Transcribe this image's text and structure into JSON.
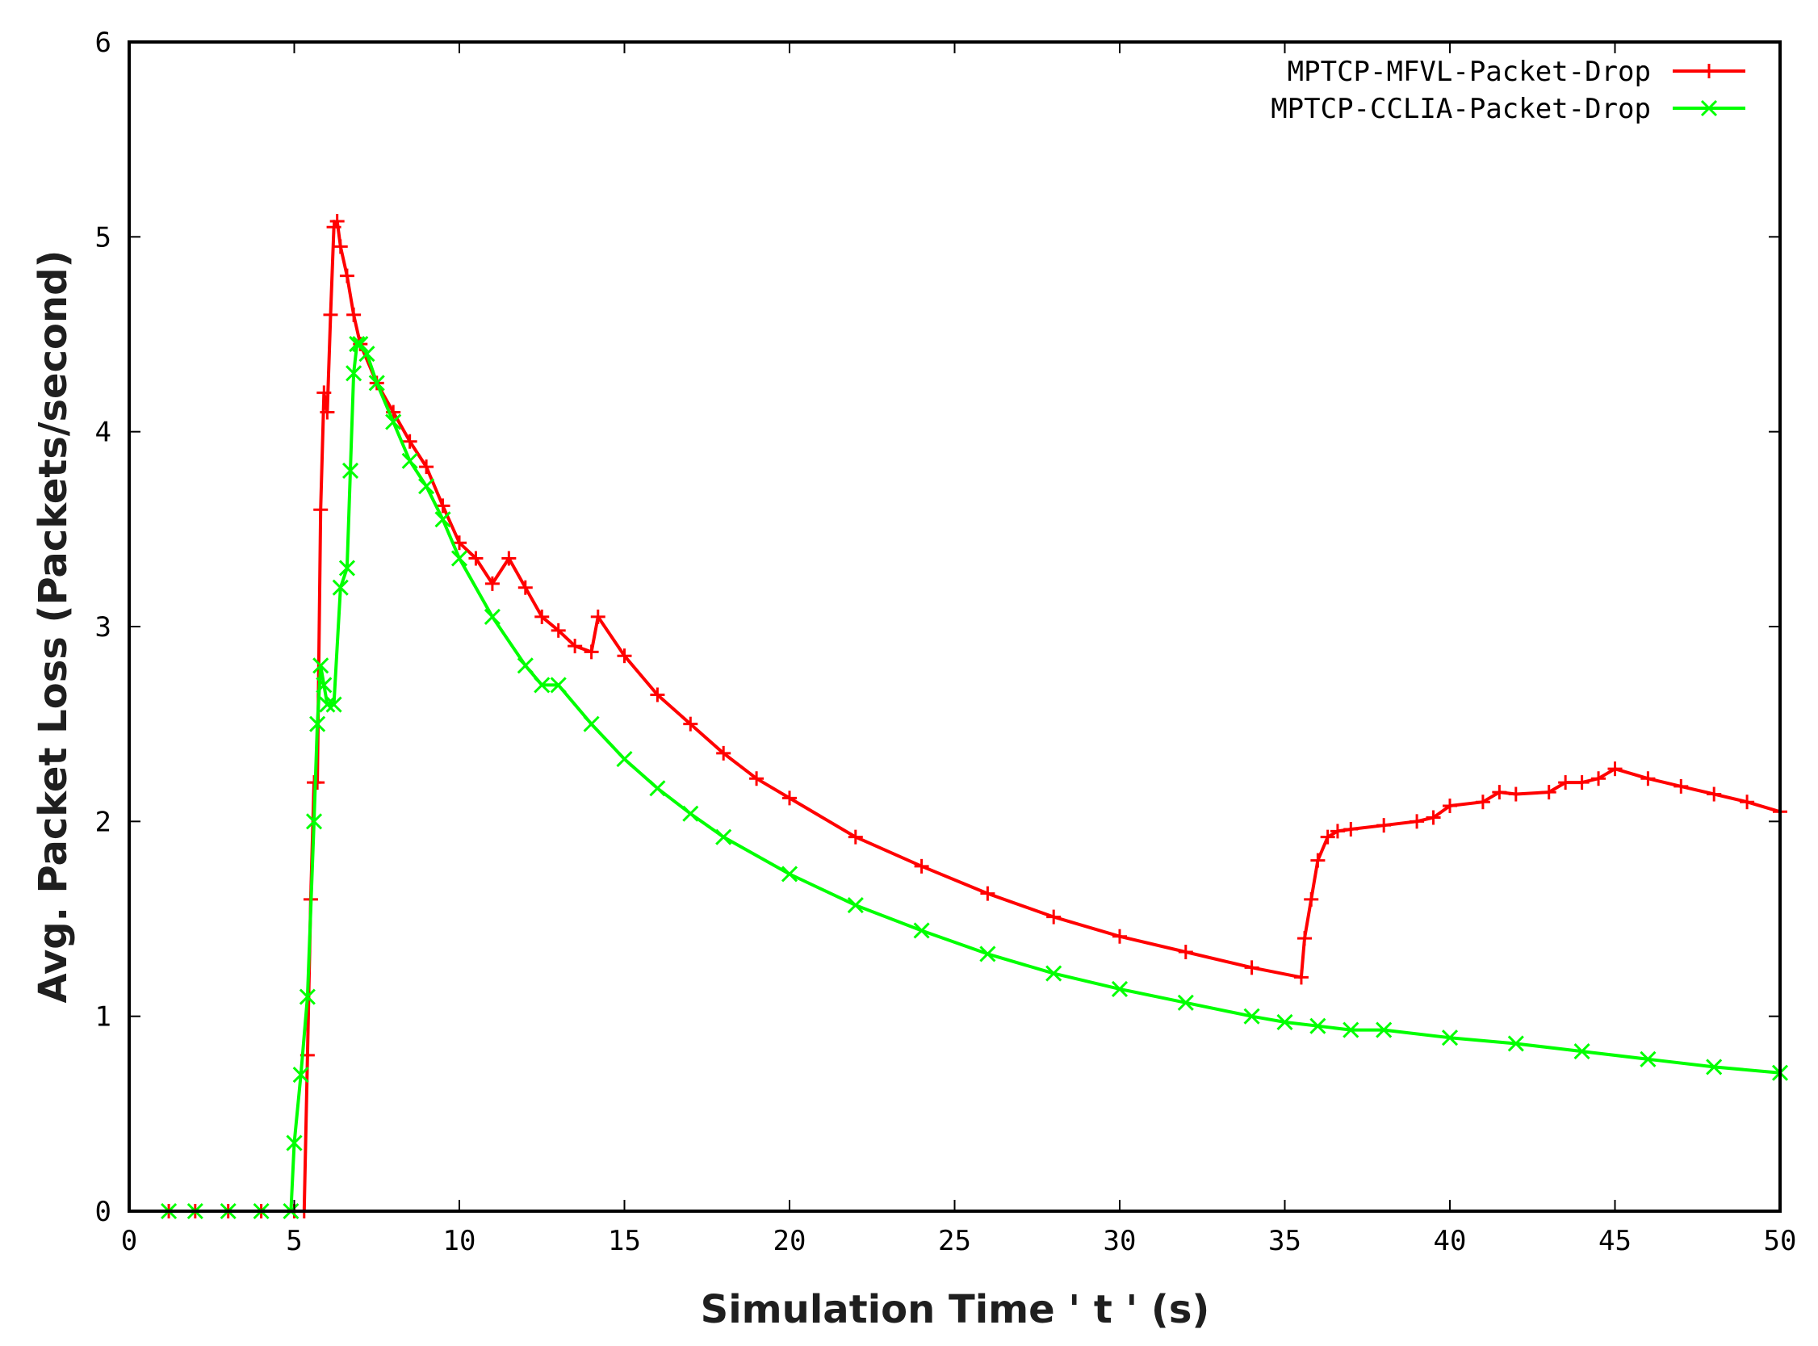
{
  "chart_data": {
    "type": "line",
    "title": "",
    "xlabel": "Simulation Time ' t ' (s)",
    "ylabel": "Avg. Packet Loss (Packets/second)",
    "xlim": [
      0,
      50
    ],
    "ylim": [
      0,
      6
    ],
    "xticks": [
      0,
      5,
      10,
      15,
      20,
      25,
      30,
      35,
      40,
      45,
      50
    ],
    "yticks": [
      0,
      1,
      2,
      3,
      4,
      5,
      6
    ],
    "grid": false,
    "legend_position": "top-right",
    "series": [
      {
        "name": "MPTCP-MFVL-Packet-Drop",
        "color": "#ff0000",
        "marker": "plus",
        "x": [
          1.2,
          2,
          3,
          4,
          5,
          5.3,
          5.4,
          5.5,
          5.6,
          5.7,
          5.8,
          5.9,
          6.0,
          6.1,
          6.2,
          6.3,
          6.4,
          6.6,
          6.8,
          7.0,
          7.5,
          8,
          8.5,
          9,
          9.5,
          10,
          10.5,
          11,
          11.5,
          12,
          12.5,
          13,
          13.5,
          14,
          14.2,
          15,
          16,
          17,
          18,
          19,
          20,
          22,
          24,
          26,
          28,
          30,
          32,
          34,
          35.5,
          35.6,
          35.8,
          36.0,
          36.3,
          36.6,
          37,
          38,
          39,
          39.5,
          40,
          41,
          41.5,
          42,
          43,
          43.5,
          44,
          44.5,
          45,
          46,
          47,
          48,
          49,
          50
        ],
        "y": [
          0,
          0,
          0,
          0,
          0,
          0,
          0.8,
          1.6,
          2.2,
          2.2,
          3.6,
          4.2,
          4.1,
          4.6,
          5.05,
          5.08,
          4.95,
          4.8,
          4.6,
          4.45,
          4.25,
          4.1,
          3.95,
          3.82,
          3.62,
          3.43,
          3.35,
          3.22,
          3.35,
          3.2,
          3.05,
          2.98,
          2.9,
          2.87,
          3.05,
          2.85,
          2.65,
          2.5,
          2.35,
          2.22,
          2.12,
          1.92,
          1.77,
          1.63,
          1.51,
          1.41,
          1.33,
          1.25,
          1.2,
          1.4,
          1.6,
          1.8,
          1.92,
          1.95,
          1.96,
          1.98,
          2.0,
          2.02,
          2.08,
          2.1,
          2.15,
          2.14,
          2.15,
          2.2,
          2.2,
          2.22,
          2.27,
          2.22,
          2.18,
          2.14,
          2.1,
          2.05
        ]
      },
      {
        "name": "MPTCP-CCLIA-Packet-Drop",
        "color": "#00ff00",
        "marker": "cross",
        "x": [
          1.2,
          2,
          3,
          4,
          4.9,
          5.0,
          5.2,
          5.4,
          5.6,
          5.7,
          5.8,
          5.9,
          6.0,
          6.2,
          6.4,
          6.6,
          6.7,
          6.8,
          6.9,
          7.0,
          7.2,
          7.5,
          8,
          8.5,
          9,
          9.5,
          10,
          11,
          12,
          12.5,
          13,
          14,
          15,
          16,
          17,
          18,
          20,
          22,
          24,
          26,
          28,
          30,
          32,
          34,
          35,
          36,
          37,
          38,
          40,
          42,
          44,
          46,
          48,
          50
        ],
        "y": [
          0,
          0,
          0,
          0,
          0,
          0.35,
          0.7,
          1.1,
          2.0,
          2.5,
          2.8,
          2.7,
          2.6,
          2.6,
          3.2,
          3.3,
          3.8,
          4.3,
          4.45,
          4.45,
          4.4,
          4.25,
          4.05,
          3.85,
          3.72,
          3.55,
          3.35,
          3.05,
          2.8,
          2.7,
          2.7,
          2.5,
          2.32,
          2.17,
          2.04,
          1.92,
          1.73,
          1.57,
          1.44,
          1.32,
          1.22,
          1.14,
          1.07,
          1.0,
          0.97,
          0.95,
          0.93,
          0.93,
          0.89,
          0.86,
          0.82,
          0.78,
          0.74,
          0.71
        ]
      }
    ]
  }
}
